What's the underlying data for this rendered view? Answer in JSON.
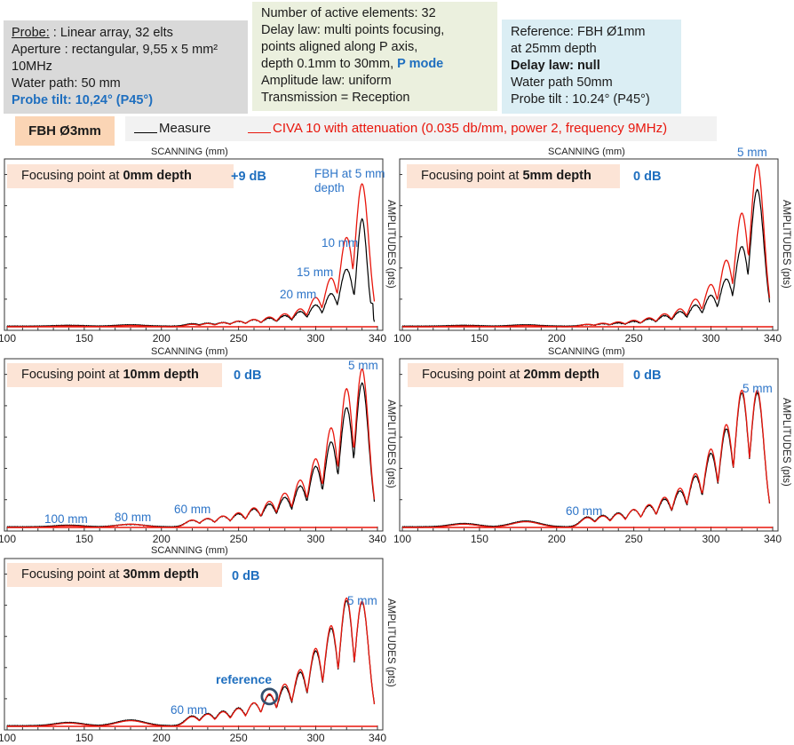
{
  "info_boxes": {
    "probe": {
      "title": "Probe:",
      "line1": " : Linear array, 32 elts",
      "line2": "Aperture : rectangular, 9,55 x 5 mm²",
      "line3": "10MHz",
      "line4": "Water path: 50 mm",
      "line5": "Probe tilt: 10,24° (P45°)"
    },
    "delay_law": {
      "line1": "Number of active elements: 32",
      "line2": "Delay law: multi points focusing,",
      "line3": "points aligned along P axis,",
      "line4a": "depth 0.1mm to 30mm, ",
      "line4b": "P mode",
      "line5": "Amplitude law: uniform",
      "line6": "Transmission = Reception"
    },
    "reference": {
      "line1": "Reference: FBH Ø1mm",
      "line2": "at 25mm depth",
      "line3": "Delay law: null",
      "line4": "Water path 50mm",
      "line5": "Probe tilt : 10.24° (P45°)"
    }
  },
  "fbh_tag": "FBH Ø3mm",
  "legend": {
    "measure": "Measure",
    "civa": "CIVA 10 with attenuation (0.035 db/mm, power 2, frequency 9MHz)",
    "measure_color": "#000000",
    "civa_color": "#e8160c"
  },
  "axis": {
    "x_title": "SCANNING (mm)",
    "y_title": "AMPLITUDES (pts)",
    "x_ticks": [
      "100",
      "150",
      "200",
      "250",
      "300",
      "340"
    ]
  },
  "chart_data": [
    {
      "type": "line",
      "title": "Focusing point at 0mm depth",
      "title_plain": "Focusing point at ",
      "title_bold": "0mm depth",
      "gain": "+9 dB",
      "xlabel": "SCANNING (mm)",
      "ylabel": "AMPLITUDES (pts)",
      "xlim": [
        100,
        340
      ],
      "ylim": [
        0,
        100
      ],
      "legend": [
        "Measure",
        "CIVA 10 with attenuation"
      ],
      "peak_positions_mm": [
        140,
        180,
        220,
        230,
        240,
        250,
        260,
        270,
        280,
        290,
        300,
        310,
        320,
        330
      ],
      "series": [
        {
          "name": "Measure",
          "color": "#000000",
          "values": [
            0.5,
            0.8,
            1.5,
            1.8,
            2.2,
            3,
            4,
            5,
            6.5,
            9,
            13,
            20,
            35,
            66
          ]
        },
        {
          "name": "CIVA 10 with attenuation",
          "color": "#e8160c",
          "values": [
            0.5,
            0.8,
            1.5,
            2,
            2.5,
            3.5,
            4.5,
            6,
            8,
            11,
            18,
            30,
            55,
            88
          ]
        }
      ],
      "annotations": [
        "FBH at 5 mm depth",
        "10 mm",
        "15 mm",
        "20 mm"
      ]
    },
    {
      "type": "line",
      "title": "Focusing point at 5mm depth",
      "title_plain": "Focusing point at ",
      "title_bold": "5mm depth",
      "gain": "0 dB",
      "xlabel": "SCANNING (mm)",
      "ylabel": "AMPLITUDES (pts)",
      "xlim": [
        100,
        340
      ],
      "ylim": [
        0,
        100
      ],
      "peak_positions_mm": [
        140,
        180,
        220,
        230,
        240,
        250,
        260,
        270,
        280,
        290,
        300,
        310,
        320,
        330
      ],
      "series": [
        {
          "name": "Measure",
          "color": "#000000",
          "values": [
            0.5,
            0.8,
            1,
            1.5,
            2,
            3,
            4.5,
            6.5,
            9,
            13,
            19,
            29,
            49,
            84
          ]
        },
        {
          "name": "CIVA 10 with attenuation",
          "color": "#e8160c",
          "values": [
            0.5,
            0.8,
            1.5,
            2.2,
            3,
            4,
            5.5,
            8,
            11,
            17,
            26,
            41,
            70,
            100
          ]
        }
      ],
      "annotations": [
        "5 mm"
      ]
    },
    {
      "type": "line",
      "title": "Focusing point at 10mm depth",
      "title_plain": "Focusing point at ",
      "title_bold": "10mm depth",
      "gain": "0 dB",
      "xlabel": "SCANNING (mm)",
      "ylabel": "AMPLITUDES (pts)",
      "xlim": [
        100,
        340
      ],
      "ylim": [
        0,
        100
      ],
      "peak_positions_mm": [
        140,
        180,
        220,
        230,
        240,
        250,
        260,
        270,
        280,
        290,
        300,
        310,
        320,
        330
      ],
      "series": [
        {
          "name": "Measure",
          "color": "#000000",
          "values": [
            1,
            1.5,
            4,
            5,
            6.5,
            8,
            11,
            14,
            18,
            25,
            37,
            52,
            73,
            88
          ]
        },
        {
          "name": "CIVA 10 with attenuation",
          "color": "#e8160c",
          "values": [
            1,
            2,
            4.5,
            5.5,
            7,
            9,
            12,
            16,
            21,
            29,
            42,
            61,
            85,
            97
          ]
        }
      ],
      "annotations": [
        "5 mm",
        "60 mm",
        "80 mm",
        "100 mm"
      ]
    },
    {
      "type": "line",
      "title": "Focusing point at 20mm depth",
      "title_plain": "Focusing point at ",
      "title_bold": "20mm depth",
      "gain": "0 dB",
      "xlabel": "SCANNING (mm)",
      "ylabel": "AMPLITUDES (pts)",
      "xlim": [
        100,
        340
      ],
      "ylim": [
        0,
        100
      ],
      "peak_positions_mm": [
        140,
        180,
        220,
        230,
        240,
        250,
        260,
        270,
        280,
        290,
        300,
        310,
        320,
        330
      ],
      "series": [
        {
          "name": "Measure",
          "color": "#000000",
          "values": [
            2,
            3.5,
            6,
            7,
            8.5,
            10.5,
            13,
            17,
            22,
            31,
            45,
            60,
            82,
            82
          ]
        },
        {
          "name": "CIVA 10 with attenuation",
          "color": "#e8160c",
          "values": [
            2,
            3.5,
            6,
            7,
            8.5,
            11,
            14,
            18.5,
            24,
            33,
            48,
            63,
            84,
            84
          ]
        }
      ],
      "annotations": [
        "5 mm",
        "60 mm"
      ]
    },
    {
      "type": "line",
      "title": "Focusing point at 30mm depth",
      "title_plain": "Focusing point at ",
      "title_bold": "30mm depth",
      "gain": "0 dB",
      "xlabel": "SCANNING (mm)",
      "ylabel": "AMPLITUDES (pts)",
      "xlim": [
        100,
        340
      ],
      "ylim": [
        0,
        100
      ],
      "peak_positions_mm": [
        140,
        180,
        220,
        230,
        240,
        250,
        260,
        270,
        280,
        290,
        300,
        310,
        320,
        330
      ],
      "series": [
        {
          "name": "Measure",
          "color": "#000000",
          "values": [
            2,
            3.5,
            6,
            7.5,
            9,
            11,
            14,
            19,
            24,
            33,
            46,
            60,
            77,
            76
          ]
        },
        {
          "name": "CIVA 10 with attenuation",
          "color": "#e8160c",
          "values": [
            2,
            3.5,
            6,
            7.5,
            9,
            11,
            14.5,
            20,
            26,
            35,
            48,
            62,
            79,
            77
          ]
        }
      ],
      "annotations": [
        "5 mm",
        "60 mm",
        "reference"
      ],
      "reference_peak_mm": 270
    }
  ]
}
